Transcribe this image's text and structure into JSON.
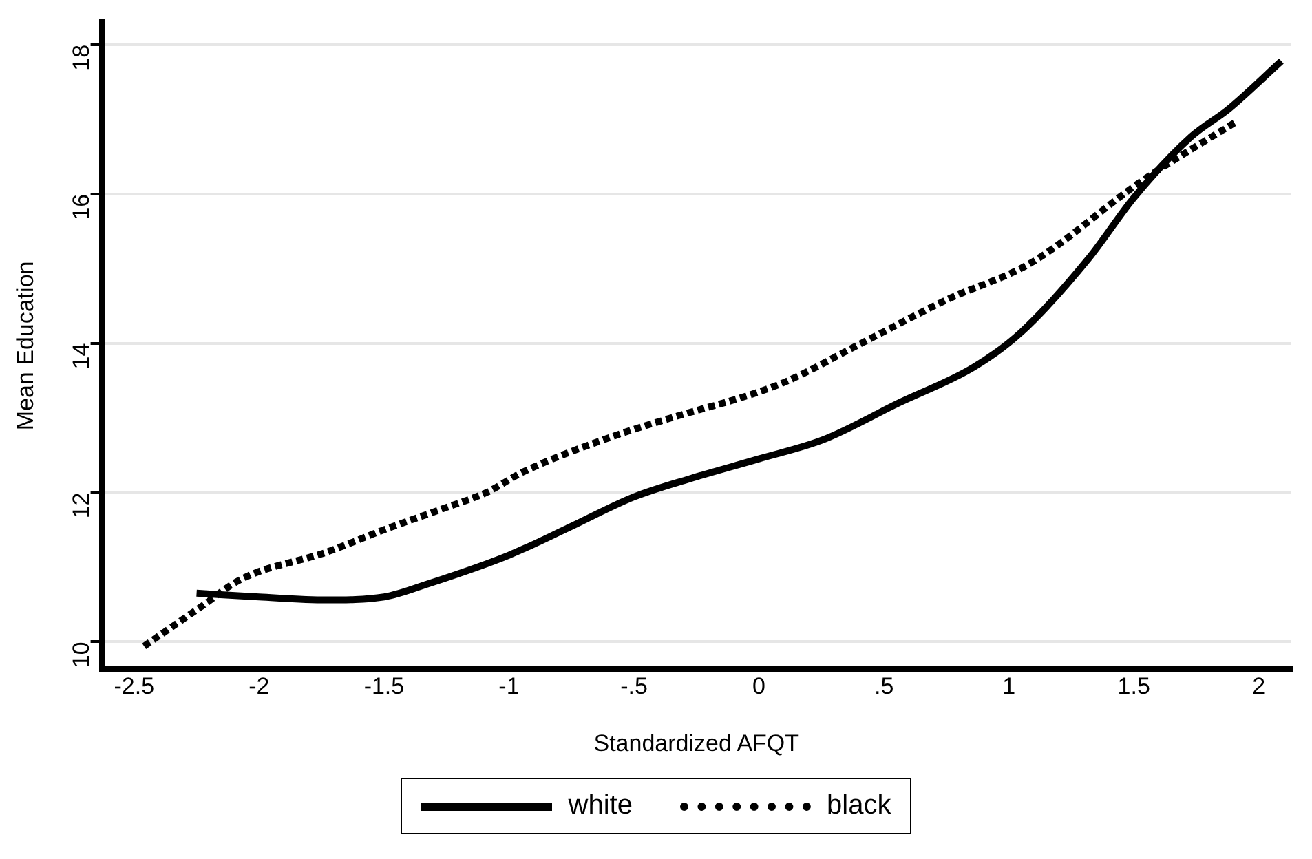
{
  "chart_data": {
    "type": "line",
    "xlabel": "Standardized AFQT",
    "ylabel": "Mean Education",
    "xlim": [
      -2.63,
      2.13
    ],
    "ylim": [
      9.63,
      18.3
    ],
    "xticks": [
      -2.5,
      -2,
      -1.5,
      -1,
      {
        "value": -0.5,
        "label": "-.5"
      },
      0,
      {
        "value": 0.5,
        "label": ".5"
      },
      1,
      1.5,
      2
    ],
    "yticks": [
      10,
      12,
      14,
      16,
      18
    ],
    "grid": "y",
    "legend": "bottom",
    "marker": "none",
    "series": [
      {
        "name": "white",
        "color": "#000000",
        "line_style": "solid",
        "x": [
          -2.25,
          -2.0,
          -1.73,
          -1.5,
          -1.32,
          -1.0,
          -0.76,
          -0.5,
          -0.28,
          0.0,
          0.26,
          0.56,
          0.86,
          1.05,
          1.32,
          1.5,
          1.73,
          1.88,
          2.09
        ],
        "values": [
          10.65,
          10.6,
          10.56,
          10.6,
          10.78,
          11.16,
          11.53,
          11.94,
          12.18,
          12.45,
          12.71,
          13.2,
          13.68,
          14.15,
          15.14,
          15.95,
          16.77,
          17.14,
          17.78
        ]
      },
      {
        "name": "black",
        "color": "#000000",
        "line_style": "dotted",
        "x": [
          -2.46,
          -2.24,
          -2.07,
          -1.73,
          -1.5,
          -1.25,
          -1.09,
          -0.94,
          -0.56,
          -0.38,
          0.09,
          0.41,
          0.75,
          1.09,
          1.53,
          1.91
        ],
        "values": [
          9.94,
          10.45,
          10.84,
          11.2,
          11.5,
          11.8,
          12.0,
          12.28,
          12.78,
          12.97,
          13.46,
          14.0,
          14.58,
          15.08,
          16.17,
          16.97
        ]
      }
    ]
  }
}
